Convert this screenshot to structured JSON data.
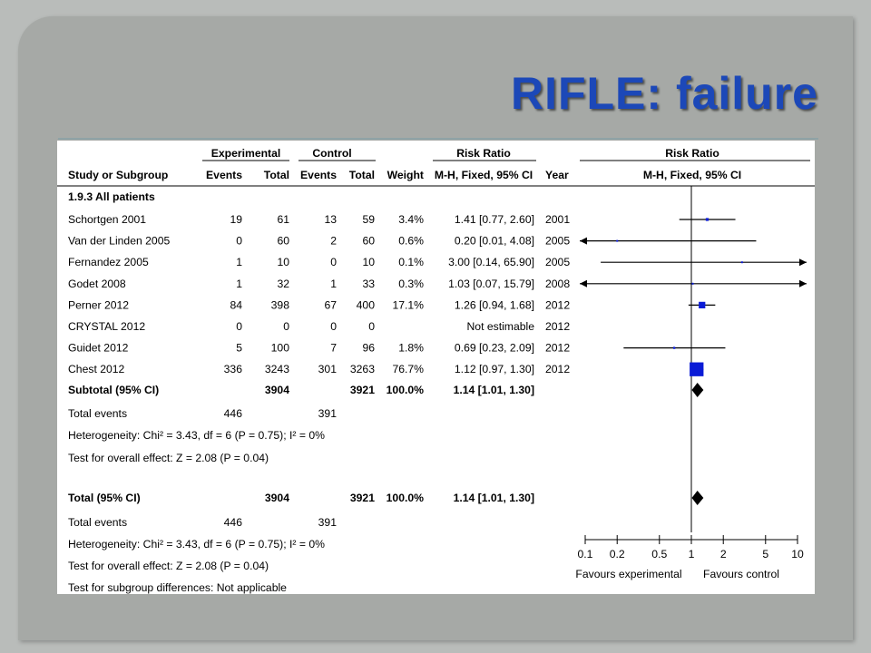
{
  "slide": {
    "title": "RIFLE: failure"
  },
  "table": {
    "group_header_experimental": "Experimental",
    "group_header_control": "Control",
    "group_header_risk_ratio": "Risk Ratio",
    "plot_header": "Risk Ratio",
    "col_study": "Study or Subgroup",
    "col_exp_events": "Events",
    "col_exp_total": "Total",
    "col_ctrl_events": "Events",
    "col_ctrl_total": "Total",
    "col_weight": "Weight",
    "col_rr": "M-H, Fixed, 95% CI",
    "col_year": "Year",
    "col_plot": "M-H, Fixed, 95% CI",
    "subgroup_label": "1.9.3 All patients",
    "subtotal": {
      "label": "Subtotal (95% CI)",
      "exp_total": "3904",
      "ctrl_total": "3921",
      "weight": "100.0%",
      "rr": "1.14 [1.01, 1.30]"
    },
    "subtotal_events": {
      "label": "Total events",
      "exp": "446",
      "ctrl": "391"
    },
    "subtotal_heterogeneity": "Heterogeneity: Chi² = 3.43, df = 6 (P = 0.75); I² = 0%",
    "subtotal_overall": "Test for overall effect: Z = 2.08 (P = 0.04)",
    "total": {
      "label": "Total (95% CI)",
      "exp_total": "3904",
      "ctrl_total": "3921",
      "weight": "100.0%",
      "rr": "1.14 [1.01, 1.30]"
    },
    "total_events": {
      "label": "Total events",
      "exp": "446",
      "ctrl": "391"
    },
    "total_heterogeneity": "Heterogeneity: Chi² = 3.43, df = 6 (P = 0.75); I² = 0%",
    "total_overall": "Test for overall effect: Z = 2.08 (P = 0.04)",
    "subgroup_differences": "Test for subgroup differences: Not applicable",
    "favours_experimental": "Favours experimental",
    "favours_control": "Favours control"
  },
  "chart_data": {
    "type": "forest",
    "x_scale": "log",
    "xlim": [
      0.1,
      10
    ],
    "x_ticks": [
      "0.1",
      "0.2",
      "0.5",
      "1",
      "2",
      "5",
      "10"
    ],
    "x_tick_values": [
      0.1,
      0.2,
      0.5,
      1,
      2,
      5,
      10
    ],
    "reference_line": 1,
    "studies": [
      {
        "name": "Schortgen 2001",
        "exp_events": "19",
        "exp_total": "61",
        "ctrl_events": "13",
        "ctrl_total": "59",
        "weight": "3.4%",
        "rr_text": "1.41 [0.77, 2.60]",
        "year": "2001",
        "rr": 1.41,
        "lo": 0.77,
        "hi": 2.6,
        "w": 3.4
      },
      {
        "name": "Van der Linden  2005",
        "exp_events": "0",
        "exp_total": "60",
        "ctrl_events": "2",
        "ctrl_total": "60",
        "weight": "0.6%",
        "rr_text": "0.20 [0.01, 4.08]",
        "year": "2005",
        "rr": 0.2,
        "lo": 0.01,
        "hi": 4.08,
        "w": 0.6
      },
      {
        "name": "Fernandez  2005",
        "exp_events": "1",
        "exp_total": "10",
        "ctrl_events": "0",
        "ctrl_total": "10",
        "weight": "0.1%",
        "rr_text": "3.00 [0.14, 65.90]",
        "year": "2005",
        "rr": 3.0,
        "lo": 0.14,
        "hi": 65.9,
        "w": 0.1
      },
      {
        "name": "Godet  2008",
        "exp_events": "1",
        "exp_total": "32",
        "ctrl_events": "1",
        "ctrl_total": "33",
        "weight": "0.3%",
        "rr_text": "1.03 [0.07, 15.79]",
        "year": "2008",
        "rr": 1.03,
        "lo": 0.07,
        "hi": 15.79,
        "w": 0.3
      },
      {
        "name": "Perner 2012",
        "exp_events": "84",
        "exp_total": "398",
        "ctrl_events": "67",
        "ctrl_total": "400",
        "weight": "17.1%",
        "rr_text": "1.26 [0.94, 1.68]",
        "year": "2012",
        "rr": 1.26,
        "lo": 0.94,
        "hi": 1.68,
        "w": 17.1
      },
      {
        "name": "CRYSTAL 2012",
        "exp_events": "0",
        "exp_total": "0",
        "ctrl_events": "0",
        "ctrl_total": "0",
        "weight": "",
        "rr_text": "Not estimable",
        "year": "2012",
        "rr": null,
        "lo": null,
        "hi": null,
        "w": 0
      },
      {
        "name": "Guidet 2012",
        "exp_events": "5",
        "exp_total": "100",
        "ctrl_events": "7",
        "ctrl_total": "96",
        "weight": "1.8%",
        "rr_text": "0.69 [0.23, 2.09]",
        "year": "2012",
        "rr": 0.69,
        "lo": 0.23,
        "hi": 2.09,
        "w": 1.8
      },
      {
        "name": "Chest 2012",
        "exp_events": "336",
        "exp_total": "3243",
        "ctrl_events": "301",
        "ctrl_total": "3263",
        "weight": "76.7%",
        "rr_text": "1.12 [0.97, 1.30]",
        "year": "2012",
        "rr": 1.12,
        "lo": 0.97,
        "hi": 1.3,
        "w": 76.7
      }
    ],
    "pooled": [
      {
        "name": "Subtotal (95% CI)",
        "rr": 1.14,
        "lo": 1.01,
        "hi": 1.3
      },
      {
        "name": "Total (95% CI)",
        "rr": 1.14,
        "lo": 1.01,
        "hi": 1.3
      }
    ],
    "colors": {
      "square": "#0a1bd6",
      "diamond": "#000000",
      "lines": "#000000"
    }
  }
}
